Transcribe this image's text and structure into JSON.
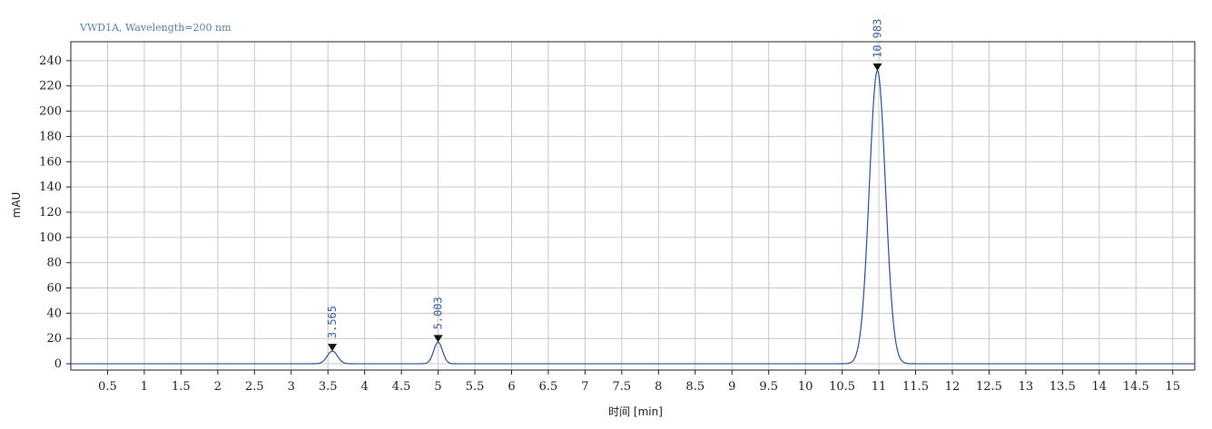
{
  "chart_data": {
    "type": "line",
    "title": "VWD1A, Wavelength=200 nm",
    "xlabel": "时间 [min]",
    "ylabel": "mAU",
    "xlim": [
      0,
      15.3
    ],
    "ylim": [
      -5,
      255
    ],
    "x_ticks": [
      {
        "v": 0.5,
        "label": "0.5"
      },
      {
        "v": 1,
        "label": "1"
      },
      {
        "v": 1.5,
        "label": "1.5"
      },
      {
        "v": 2,
        "label": "2"
      },
      {
        "v": 2.5,
        "label": "2.5"
      },
      {
        "v": 3,
        "label": "3"
      },
      {
        "v": 3.5,
        "label": "3.5"
      },
      {
        "v": 4,
        "label": "4"
      },
      {
        "v": 4.5,
        "label": "4.5"
      },
      {
        "v": 5,
        "label": "5"
      },
      {
        "v": 5.5,
        "label": "5.5"
      },
      {
        "v": 6,
        "label": "6"
      },
      {
        "v": 6.5,
        "label": "6.5"
      },
      {
        "v": 7,
        "label": "7"
      },
      {
        "v": 7.5,
        "label": "7.5"
      },
      {
        "v": 8,
        "label": "8"
      },
      {
        "v": 8.5,
        "label": "8.5"
      },
      {
        "v": 9,
        "label": "9"
      },
      {
        "v": 9.5,
        "label": "9.5"
      },
      {
        "v": 10,
        "label": "10"
      },
      {
        "v": 10.5,
        "label": "10.5"
      },
      {
        "v": 11,
        "label": "11"
      },
      {
        "v": 11.5,
        "label": "11.5"
      },
      {
        "v": 12,
        "label": "12"
      },
      {
        "v": 12.5,
        "label": "12.5"
      },
      {
        "v": 13,
        "label": "13"
      },
      {
        "v": 13.5,
        "label": "13.5"
      },
      {
        "v": 14,
        "label": "14"
      },
      {
        "v": 14.5,
        "label": "14.5"
      },
      {
        "v": 15,
        "label": "15"
      }
    ],
    "y_ticks": [
      0,
      20,
      40,
      60,
      80,
      100,
      120,
      140,
      160,
      180,
      200,
      220,
      240
    ],
    "grid": true,
    "baseline": 0,
    "peaks": [
      {
        "rt": 3.56,
        "height": 10,
        "width": 0.07,
        "label": "3.565"
      },
      {
        "rt": 5.0,
        "height": 17,
        "width": 0.06,
        "label": "5.003"
      },
      {
        "rt": 10.98,
        "height": 232,
        "width": 0.11,
        "label": "10.983"
      }
    ],
    "colors": {
      "trace": "#2f4f8f",
      "peak_label": "#3a5f9a",
      "grid": "#c8c8c8"
    }
  }
}
